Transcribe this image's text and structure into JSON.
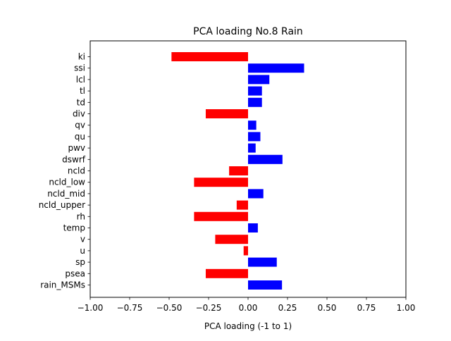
{
  "chart_data": {
    "type": "bar",
    "orientation": "horizontal",
    "title": "PCA loading No.8 Rain",
    "xlabel": "PCA loading (-1 to 1)",
    "ylabel": "",
    "xlim": [
      -1.0,
      1.0
    ],
    "xticks": [
      "−1.00",
      "−0.75",
      "−0.50",
      "−0.25",
      "0.00",
      "0.25",
      "0.50",
      "0.75",
      "1.00"
    ],
    "xtick_values": [
      -1.0,
      -0.75,
      -0.5,
      -0.25,
      0.0,
      0.25,
      0.5,
      0.75,
      1.0
    ],
    "categories": [
      "ki",
      "ssi",
      "lcl",
      "tl",
      "td",
      "div",
      "qv",
      "qu",
      "pwv",
      "dswrf",
      "ncld",
      "ncld_low",
      "ncld_mid",
      "ncld_upper",
      "rh",
      "temp",
      "v",
      "u",
      "sp",
      "psea",
      "rain_MSMs"
    ],
    "values": [
      -0.485,
      0.355,
      0.135,
      0.088,
      0.088,
      -0.268,
      0.052,
      0.078,
      0.048,
      0.218,
      -0.12,
      -0.342,
      0.097,
      -0.072,
      -0.342,
      0.062,
      -0.208,
      -0.028,
      0.182,
      -0.268,
      0.215
    ],
    "colors": {
      "positive": "#0000ff",
      "negative": "#ff0000"
    },
    "grid": false,
    "legend": "none"
  }
}
